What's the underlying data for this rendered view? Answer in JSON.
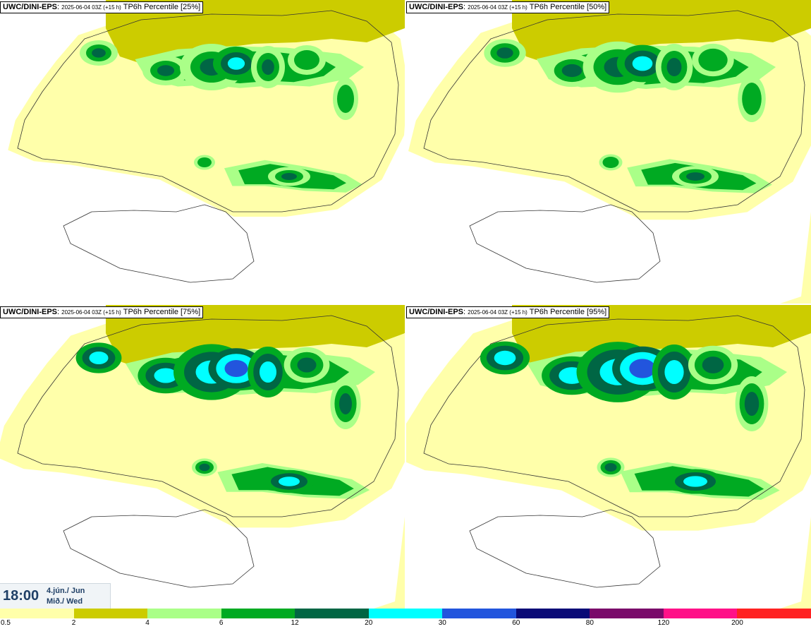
{
  "panels": [
    {
      "model": "UWC/DINI-EPS",
      "run": "2025-06-04 03Z (+15 h)",
      "field": "TP6h Percentile [25%]"
    },
    {
      "model": "UWC/DINI-EPS",
      "run": "2025-06-04 03Z (+15 h)",
      "field": "TP6h Percentile [50%]"
    },
    {
      "model": "UWC/DINI-EPS",
      "run": "2025-06-04 03Z (+15 h)",
      "field": "TP6h Percentile [75%]"
    },
    {
      "model": "UWC/DINI-EPS",
      "run": "2025-06-04 03Z (+15 h)",
      "field": "TP6h Percentile [95%]"
    }
  ],
  "valid_time": {
    "time": "18:00",
    "date": "4.jún./ Jun",
    "weekday": "Mið./ Wed"
  },
  "legend": {
    "ticks": [
      "0.5",
      "2",
      "4",
      "6",
      "12",
      "20",
      "30",
      "60",
      "80",
      "120",
      "200"
    ],
    "colors": [
      "#ffffaa",
      "#cccc00",
      "#aaff88",
      "#00aa22",
      "#006644",
      "#00ffff",
      "#2255dd",
      "#0a0a77",
      "#7a0a6a",
      "#ff1188",
      "#ff2222"
    ]
  }
}
